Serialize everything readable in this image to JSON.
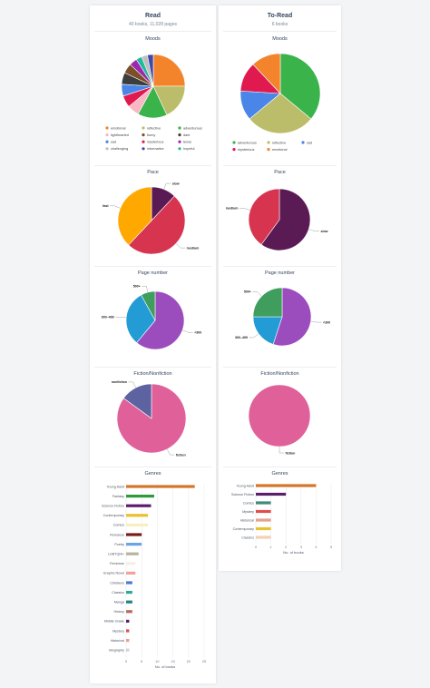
{
  "read": {
    "title": "Read",
    "books_count": "40 books",
    "pages_count": "11,028 pages",
    "sections": {
      "moods": "Moods",
      "pace": "Pace",
      "page_number": "Page number",
      "fiction": "Fiction/Nonfiction",
      "genres": "Genres"
    }
  },
  "toread": {
    "title": "To-Read",
    "books_count": "6 books",
    "sections": {
      "moods": "Moods",
      "pace": "Pace",
      "page_number": "Page number",
      "fiction": "Fiction/Nonfiction",
      "genres": "Genres"
    }
  },
  "colors": {
    "emotional": "#f4842c",
    "reflective": "#bcbd6a",
    "adventurous": "#3ab34a",
    "lighthearted": "#f9b6c3",
    "funny": "#7a4f2a",
    "dark": "#3d3d3d",
    "sad": "#4a86e8",
    "mysterious": "#e0194f",
    "tense": "#9c27b0",
    "challenging": "#bfbfbf",
    "informative": "#3f4aa8",
    "hopeful": "#22b89a",
    "slow": "#5a1b55",
    "medium": "#d6344f",
    "fast": "#ffa800",
    "p500": "#3f9e5e",
    "p300_499": "#239bd5",
    "p_lt300": "#9c4dbd",
    "nonfiction": "#5d62a0",
    "fiction": "#e0609a"
  },
  "chart_data": [
    {
      "id": "read-moods",
      "type": "pie",
      "title": "Moods",
      "legend_position": "bottom",
      "slices": [
        {
          "label": "emotional",
          "value": 25
        },
        {
          "label": "reflective",
          "value": 18
        },
        {
          "label": "adventurous",
          "value": 15
        },
        {
          "label": "lighthearted",
          "value": 6
        },
        {
          "label": "mysterious",
          "value": 6
        },
        {
          "label": "sad",
          "value": 6
        },
        {
          "label": "dark",
          "value": 6
        },
        {
          "label": "funny",
          "value": 5
        },
        {
          "label": "tense",
          "value": 4
        },
        {
          "label": "hopeful",
          "value": 3
        },
        {
          "label": "challenging",
          "value": 3
        },
        {
          "label": "informative",
          "value": 3
        }
      ]
    },
    {
      "id": "toread-moods",
      "type": "pie",
      "title": "Moods",
      "legend_position": "bottom",
      "slices": [
        {
          "label": "adventurous",
          "value": 36
        },
        {
          "label": "reflective",
          "value": 28
        },
        {
          "label": "sad",
          "value": 12
        },
        {
          "label": "mysterious",
          "value": 12
        },
        {
          "label": "emotional",
          "value": 12
        }
      ],
      "legend_order": [
        "adventurous",
        "reflective",
        "sad",
        "mysterious",
        "emotional"
      ]
    },
    {
      "id": "read-pace",
      "type": "pie",
      "title": "Pace",
      "slices": [
        {
          "label": "slow",
          "value": 12
        },
        {
          "label": "medium",
          "value": 50
        },
        {
          "label": "fast",
          "value": 38
        }
      ]
    },
    {
      "id": "toread-pace",
      "type": "pie",
      "title": "Pace",
      "slices": [
        {
          "label": "slow",
          "value": 60
        },
        {
          "label": "medium",
          "value": 40
        }
      ]
    },
    {
      "id": "read-pages",
      "type": "pie",
      "title": "Page number",
      "slices": [
        {
          "label": "<300",
          "value": 61
        },
        {
          "label": "300–499",
          "value": 31
        },
        {
          "label": "500+",
          "value": 8
        }
      ]
    },
    {
      "id": "toread-pages",
      "type": "pie",
      "title": "Page number",
      "slices": [
        {
          "label": "<300",
          "value": 55
        },
        {
          "label": "300–499",
          "value": 20
        },
        {
          "label": "500+",
          "value": 25
        }
      ]
    },
    {
      "id": "read-fiction",
      "type": "pie",
      "title": "Fiction/Nonfiction",
      "slices": [
        {
          "label": "fiction",
          "value": 85
        },
        {
          "label": "nonfiction",
          "value": 15
        }
      ]
    },
    {
      "id": "toread-fiction",
      "type": "pie",
      "title": "Fiction/Nonfiction",
      "slices": [
        {
          "label": "fiction",
          "value": 100
        }
      ]
    },
    {
      "id": "read-genres",
      "type": "bar",
      "orientation": "horizontal",
      "title": "Genres",
      "xlabel": "No. of books",
      "xlim": [
        0,
        25
      ],
      "xticks": [
        0,
        5,
        10,
        15,
        20,
        25
      ],
      "grid": true,
      "categories": [
        "Young Adult",
        "Fantasy",
        "Science Fiction",
        "Contemporary",
        "Comics",
        "Romance",
        "Poetry",
        "LGBTQIA+",
        "Feminism",
        "Graphic Novel",
        "Childrens",
        "Classics",
        "Manga",
        "History",
        "Middle Grade",
        "Mystery",
        "Historical",
        "Biography"
      ],
      "values": [
        22,
        9,
        8,
        7,
        7,
        5,
        5,
        4,
        3,
        3,
        2,
        2,
        2,
        2,
        1,
        1,
        1,
        1
      ],
      "colors": [
        "#d4752a",
        "#2e9a3a",
        "#5b1e6a",
        "#e8c22c",
        "#f7efc0",
        "#7c1b1b",
        "#6ba5e8",
        "#b9b39e",
        "#f3f0e6",
        "#f3a49a",
        "#4a7bd4",
        "#2ea79b",
        "#23827b",
        "#b86a5c",
        "#5b1e6a",
        "#e64b4b",
        "#e7a18a",
        "#d8ced7"
      ]
    },
    {
      "id": "toread-genres",
      "type": "bar",
      "orientation": "horizontal",
      "title": "Genres",
      "xlabel": "No. of books",
      "xlim": [
        0,
        5
      ],
      "xticks": [
        0,
        1,
        2,
        3,
        4,
        5
      ],
      "grid": true,
      "categories": [
        "Young Adult",
        "Science Fiction",
        "Comics",
        "Mystery",
        "Historical",
        "Contemporary",
        "Classics"
      ],
      "values": [
        4,
        2,
        1,
        1,
        1,
        1,
        1
      ],
      "colors": [
        "#d4752a",
        "#5b1e6a",
        "#3f8a7a",
        "#e64b4b",
        "#e7a18a",
        "#e8c22c",
        "#f3d0b5"
      ]
    }
  ]
}
